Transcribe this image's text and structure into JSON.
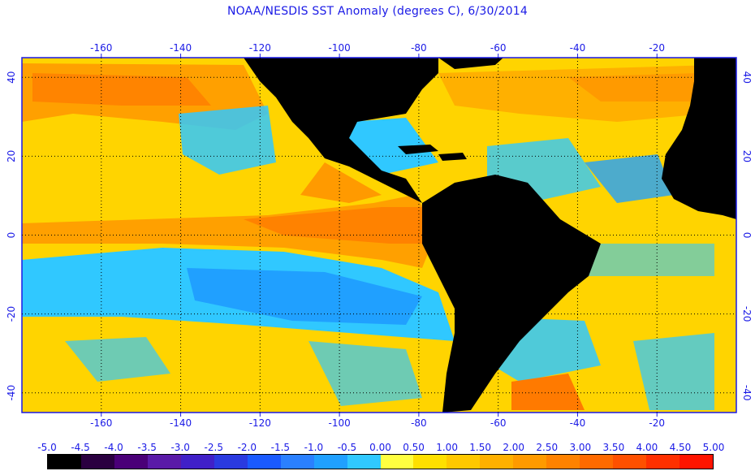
{
  "title": "NOAA/NESDIS SST Anomaly (degrees C), 6/30/2014",
  "map": {
    "lon_range": [
      -180,
      0
    ],
    "lat_range": [
      -45,
      45
    ],
    "lon_ticks": [
      {
        "value": -160,
        "label": "-160"
      },
      {
        "value": -140,
        "label": "-140"
      },
      {
        "value": -120,
        "label": "-120"
      },
      {
        "value": -100,
        "label": "-100"
      },
      {
        "value": -80,
        "label": "-80"
      },
      {
        "value": -60,
        "label": "-60"
      },
      {
        "value": -40,
        "label": "-40"
      },
      {
        "value": -20,
        "label": "-20"
      }
    ],
    "lat_ticks": [
      {
        "value": 40,
        "label": "40"
      },
      {
        "value": 20,
        "label": "20"
      },
      {
        "value": 0,
        "label": "0"
      },
      {
        "value": -20,
        "label": "-20"
      },
      {
        "value": -40,
        "label": "-40"
      }
    ],
    "land_color": "#000000",
    "grid": "dotted"
  },
  "colorbar": {
    "labels": [
      "-5.0",
      "-4.5",
      "-4.0",
      "-3.5",
      "-3.0",
      "-2.5",
      "-2.0",
      "-1.5",
      "-1.0",
      "-0.5",
      "0.00",
      "0.50",
      "1.00",
      "1.50",
      "2.00",
      "2.50",
      "3.00",
      "3.50",
      "4.00",
      "4.50",
      "5.00"
    ],
    "colors": [
      "#000000",
      "#2a0040",
      "#4a0078",
      "#5a1aa8",
      "#4020c8",
      "#2a3ae0",
      "#1a5aff",
      "#2a80ff",
      "#20a0ff",
      "#30c8ff",
      "#ffff40",
      "#ffe000",
      "#ffc800",
      "#ffb000",
      "#ff9a00",
      "#ff8200",
      "#ff6a00",
      "#ff5000",
      "#ff3000",
      "#ff1400"
    ]
  }
}
